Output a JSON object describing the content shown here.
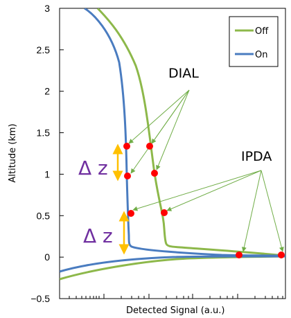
{
  "chart_data": {
    "type": "line",
    "xlabel": "Detected Signal (a.u.)",
    "ylabel": "Altitude (km)",
    "ylim": [
      -0.5,
      3
    ],
    "yticks": [
      "3",
      "2.5",
      "2",
      "1.5",
      "1",
      "0.5",
      "0",
      "−0.5"
    ],
    "x_scale": "log",
    "legend": {
      "placement": "top-right",
      "entries": [
        "Off",
        "On"
      ]
    },
    "series": [
      {
        "name": "Off",
        "color": "#8db84a"
      },
      {
        "name": "On",
        "color": "#4a7cc0"
      }
    ],
    "annotations": [
      {
        "text": "DIAL",
        "points_altitude_km": [
          1.34,
          1.34,
          1.0,
          0.97
        ]
      },
      {
        "text": "IPDA",
        "points_altitude_km": [
          0.53,
          0.53,
          0.01,
          0.01
        ]
      },
      {
        "text": "Δ z"
      },
      {
        "text": "Δ z"
      }
    ],
    "marker_color": "#ff0000",
    "arrow_color": "#70ad47",
    "bracket_color": "#ffc000"
  }
}
